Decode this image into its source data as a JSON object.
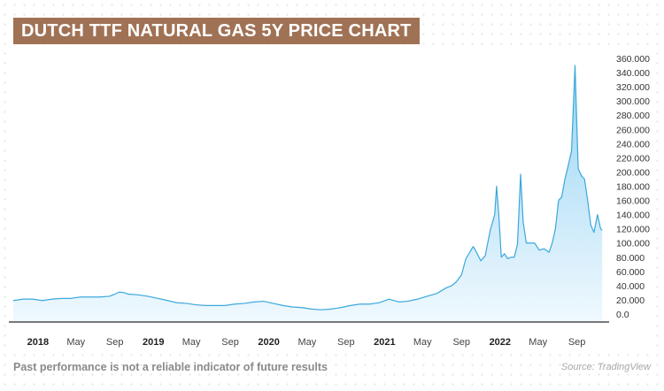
{
  "title": "DUTCH TTF NATURAL GAS 5Y PRICE CHART",
  "footer": {
    "disclaimer": "Past performance is not a reliable indicator of future results",
    "source": "Source: TradingView"
  },
  "colors": {
    "title_bg": "#a07255",
    "line": "#3ba8dc",
    "area_top": "#8fd0f2",
    "area_bottom": "#eef8fe"
  },
  "chart_data": {
    "type": "area",
    "title": "DUTCH TTF NATURAL GAS 5Y PRICE CHART",
    "xlabel": "",
    "ylabel": "",
    "ylim": [
      0,
      360
    ],
    "xlim": [
      "2017-10-15",
      "2022-11-25"
    ],
    "y_ticks": [
      "0.0",
      "20.000",
      "40.000",
      "60.000",
      "80.000",
      "100.000",
      "120.000",
      "140.000",
      "160.000",
      "180.000",
      "200.000",
      "220.000",
      "240.000",
      "260.000",
      "280.000",
      "300.000",
      "320.000",
      "340.000",
      "360.000"
    ],
    "x_ticks": [
      {
        "date": "2018-01-01",
        "label": "2018",
        "bold": true
      },
      {
        "date": "2018-05-01",
        "label": "May",
        "bold": false
      },
      {
        "date": "2018-09-01",
        "label": "Sep",
        "bold": false
      },
      {
        "date": "2019-01-01",
        "label": "2019",
        "bold": true
      },
      {
        "date": "2019-05-01",
        "label": "May",
        "bold": false
      },
      {
        "date": "2019-09-01",
        "label": "Sep",
        "bold": false
      },
      {
        "date": "2020-01-01",
        "label": "2020",
        "bold": true
      },
      {
        "date": "2020-05-01",
        "label": "May",
        "bold": false
      },
      {
        "date": "2020-09-01",
        "label": "Sep",
        "bold": false
      },
      {
        "date": "2021-01-01",
        "label": "2021",
        "bold": true
      },
      {
        "date": "2021-05-01",
        "label": "May",
        "bold": false
      },
      {
        "date": "2021-09-01",
        "label": "Sep",
        "bold": false
      },
      {
        "date": "2022-01-01",
        "label": "2022",
        "bold": true
      },
      {
        "date": "2022-05-01",
        "label": "May",
        "bold": false
      },
      {
        "date": "2022-09-01",
        "label": "Sep",
        "bold": false
      }
    ],
    "grid": false,
    "legend": "none",
    "series": [
      {
        "x": [
          "2017-10-15",
          "2017-11-15",
          "2017-12-15",
          "2018-01-15",
          "2018-02-15",
          "2018-03-15",
          "2018-04-15",
          "2018-05-15",
          "2018-06-15",
          "2018-07-15",
          "2018-08-15",
          "2018-09-01",
          "2018-09-15",
          "2018-10-01",
          "2018-10-15",
          "2018-11-15",
          "2018-12-15",
          "2019-01-15",
          "2019-02-15",
          "2019-03-15",
          "2019-04-15",
          "2019-05-15",
          "2019-06-15",
          "2019-07-15",
          "2019-08-15",
          "2019-09-15",
          "2019-10-15",
          "2019-11-15",
          "2019-12-15",
          "2020-01-15",
          "2020-02-15",
          "2020-03-15",
          "2020-04-15",
          "2020-05-15",
          "2020-06-15",
          "2020-07-15",
          "2020-08-15",
          "2020-09-15",
          "2020-10-15",
          "2020-11-15",
          "2020-12-15",
          "2021-01-15",
          "2021-02-15",
          "2021-03-15",
          "2021-04-15",
          "2021-05-15",
          "2021-06-15",
          "2021-07-15",
          "2021-08-01",
          "2021-08-15",
          "2021-09-01",
          "2021-09-15",
          "2021-10-01",
          "2021-10-08",
          "2021-10-15",
          "2021-11-01",
          "2021-11-15",
          "2021-12-01",
          "2021-12-15",
          "2021-12-21",
          "2021-12-28",
          "2022-01-05",
          "2022-01-15",
          "2022-01-25",
          "2022-02-05",
          "2022-02-15",
          "2022-02-25",
          "2022-03-07",
          "2022-03-15",
          "2022-03-25",
          "2022-04-05",
          "2022-04-20",
          "2022-05-05",
          "2022-05-20",
          "2022-06-05",
          "2022-06-15",
          "2022-06-25",
          "2022-07-05",
          "2022-07-15",
          "2022-07-25",
          "2022-08-05",
          "2022-08-15",
          "2022-08-26",
          "2022-09-05",
          "2022-09-15",
          "2022-09-25",
          "2022-10-05",
          "2022-10-15",
          "2022-10-25",
          "2022-11-05",
          "2022-11-15",
          "2022-11-20"
        ],
        "y": [
          19,
          21,
          21,
          19,
          21,
          22,
          22,
          24,
          24,
          24,
          25,
          28,
          31,
          30,
          28,
          27,
          25,
          22,
          19,
          16,
          15,
          13,
          12,
          12,
          12,
          14,
          15,
          17,
          18,
          15,
          12,
          10,
          9,
          7,
          6,
          7,
          9,
          12,
          14,
          14,
          16,
          21,
          17,
          18,
          21,
          25,
          29,
          37,
          40,
          45,
          55,
          78,
          90,
          95,
          90,
          75,
          82,
          118,
          140,
          180,
          140,
          80,
          85,
          78,
          80,
          80,
          98,
          197,
          130,
          100,
          100,
          100,
          90,
          92,
          87,
          100,
          120,
          160,
          165,
          190,
          210,
          230,
          350,
          205,
          195,
          190,
          160,
          125,
          115,
          140,
          120,
          118
        ]
      }
    ]
  }
}
